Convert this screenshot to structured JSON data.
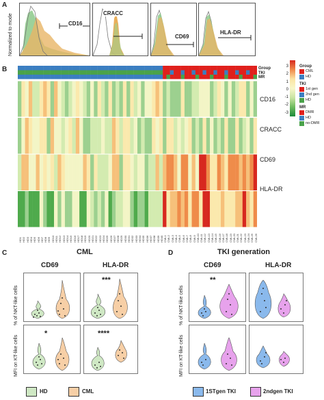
{
  "panels": {
    "a": "A",
    "b": "B",
    "c": "C",
    "d": "D"
  },
  "histograms": {
    "ylabel": "Normalized to mode",
    "items": [
      {
        "label": "CD16"
      },
      {
        "label": "CRACC"
      },
      {
        "label": "CD69"
      },
      {
        "label": "HLA-DR"
      }
    ]
  },
  "heatmap": {
    "annotation_rows": [
      "Group",
      "TKI",
      "MR"
    ],
    "rows": [
      "CD16",
      "CRACC",
      "CD69",
      "HLA-DR"
    ],
    "scale_ticks": [
      "3",
      "2",
      "1",
      "0",
      "-1",
      "-2",
      "-3"
    ],
    "legend": {
      "group": {
        "title": "Group",
        "items": [
          {
            "label": "CML",
            "color": "#e0201c"
          },
          {
            "label": "HD",
            "color": "#3b7ec1"
          }
        ]
      },
      "tki": {
        "title": "TKI",
        "items": [
          {
            "label": "1st gen",
            "color": "#e0201c"
          },
          {
            "label": "2nd gen",
            "color": "#3b7ec1"
          },
          {
            "label": "HD",
            "color": "#4aa24a"
          }
        ]
      },
      "mr": {
        "title": "MR",
        "items": [
          {
            "label": "DMR",
            "color": "#e0201c"
          },
          {
            "label": "HD",
            "color": "#3b7ec1"
          },
          {
            "label": "no-DMR",
            "color": "#4aa24a"
          }
        ]
      }
    },
    "col_labels": [
      "HD1",
      "HD2",
      "HD3",
      "HD4",
      "HD5",
      "HD6",
      "HD7",
      "HD8",
      "HD9",
      "HD10",
      "HD11",
      "HD12",
      "HD13",
      "HD14",
      "HD15",
      "HD16",
      "HD17",
      "HD18",
      "HD19",
      "HD20",
      "HD21",
      "HD22",
      "HD23",
      "HD24",
      "HD25",
      "HD26",
      "HD27",
      "HD28",
      "HD29",
      "HD30",
      "HD31",
      "HD32",
      "HD33",
      "HD34",
      "HD35",
      "HD36",
      "HD37",
      "HD38",
      "HD39",
      "HD40",
      "CML1",
      "CML2",
      "CML3",
      "CML4",
      "CML5",
      "CML6",
      "CML7",
      "CML8",
      "CML9",
      "CML10",
      "CML11",
      "CML12",
      "CML13",
      "CML14",
      "CML15",
      "CML16",
      "CML17",
      "CML18",
      "CML19",
      "CML20",
      "CML21",
      "CML22",
      "CML23",
      "CML24",
      "CML25",
      "CML26"
    ]
  },
  "panel_c": {
    "title": "CML",
    "col1": "CD69",
    "col2": "HLA-DR",
    "ylabel_top": "% of NKT-like cells",
    "ylabel_bottom": "MFI on KT-like cells",
    "stars": [
      "***",
      "*",
      "****"
    ],
    "legend": [
      {
        "label": "HD",
        "color": "#cfe8c4"
      },
      {
        "label": "CML",
        "color": "#f7cfa6"
      }
    ]
  },
  "panel_d": {
    "title": "TKI generation",
    "col1": "CD69",
    "col2": "HLA-DR",
    "ylabel_top": "% of NKT-like cells",
    "ylabel_bottom": "MFI on KT-like cells",
    "stars": [
      "**"
    ],
    "legend": [
      {
        "label": "1STgen TKI",
        "color": "#8ab9ec"
      },
      {
        "label": "2ndgen TKI",
        "color": "#e7a2ec"
      }
    ]
  }
}
